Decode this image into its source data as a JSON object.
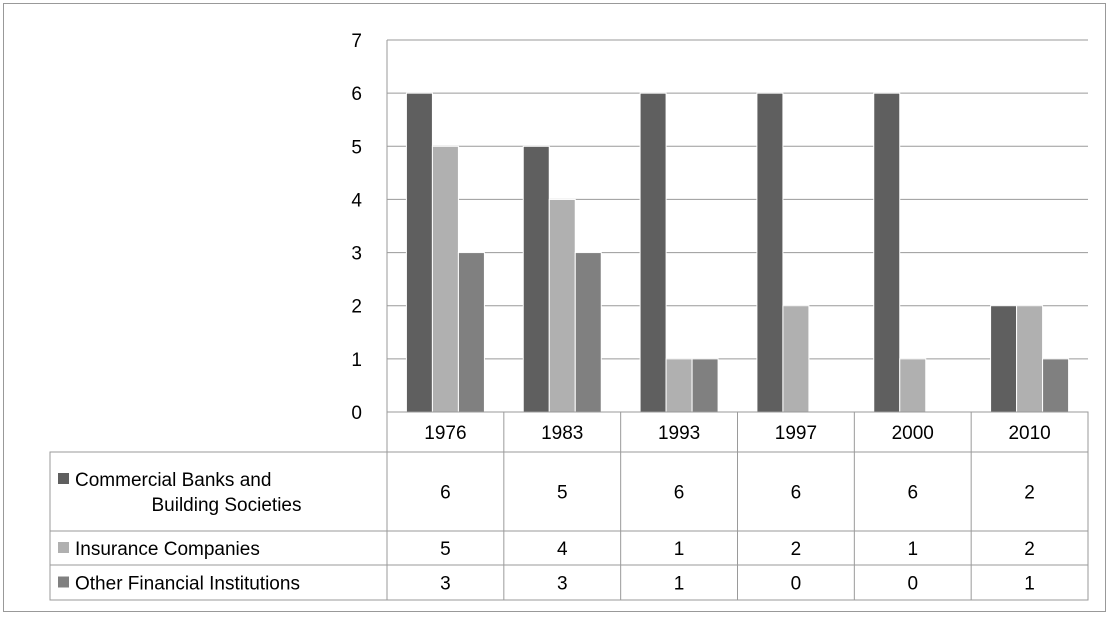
{
  "chart_data": {
    "type": "bar",
    "categories": [
      "1976",
      "1983",
      "1993",
      "1997",
      "2000",
      "2010"
    ],
    "series": [
      {
        "name": "Commercial Banks and Building Societies",
        "name_lines": [
          "Commercial Banks and",
          "Building Societies"
        ],
        "values": [
          6,
          5,
          6,
          6,
          6,
          2
        ],
        "color": "#5f5f5f"
      },
      {
        "name": "Insurance Companies",
        "name_lines": [
          "Insurance Companies"
        ],
        "values": [
          5,
          4,
          1,
          2,
          1,
          2
        ],
        "color": "#b0b0b0"
      },
      {
        "name": "Other Financial Institutions",
        "name_lines": [
          "Other Financial Institutions"
        ],
        "values": [
          3,
          3,
          1,
          0,
          0,
          1
        ],
        "color": "#808080"
      }
    ],
    "yticks": [
      "0",
      "1",
      "2",
      "3",
      "4",
      "5",
      "6",
      "7"
    ],
    "ylim": [
      0,
      7
    ],
    "grid": true,
    "legend": "data-table"
  }
}
